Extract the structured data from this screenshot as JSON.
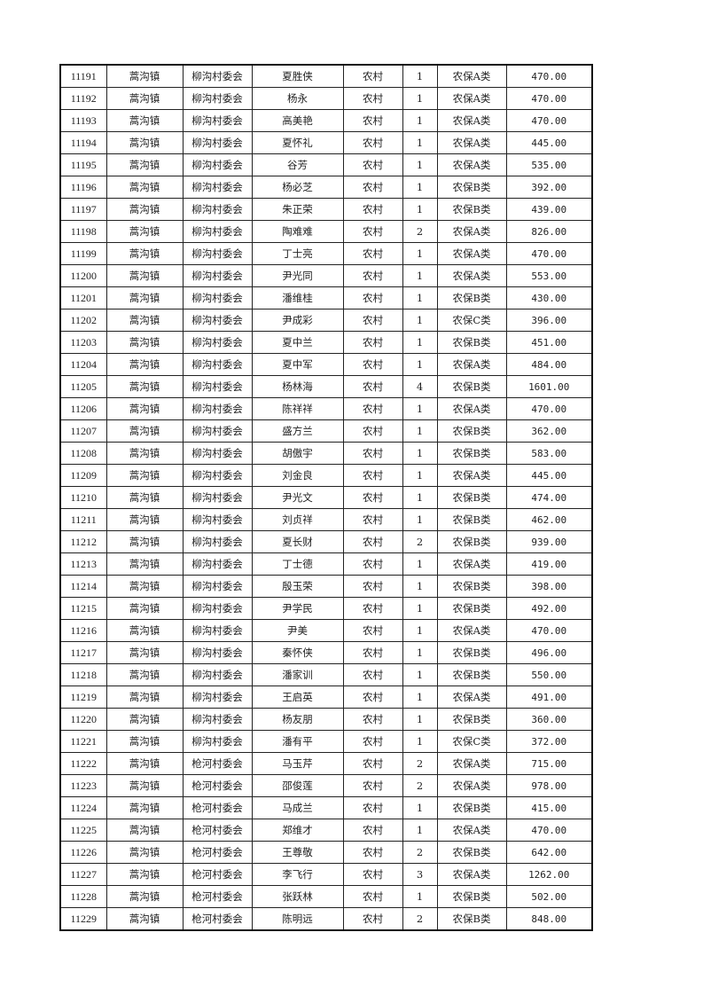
{
  "table": {
    "rows": [
      [
        "11191",
        "蒿沟镇",
        "柳沟村委会",
        "夏胜侠",
        "农村",
        "1",
        "农保A类",
        "470.00"
      ],
      [
        "11192",
        "蒿沟镇",
        "柳沟村委会",
        "杨永",
        "农村",
        "1",
        "农保A类",
        "470.00"
      ],
      [
        "11193",
        "蒿沟镇",
        "柳沟村委会",
        "高美艳",
        "农村",
        "1",
        "农保A类",
        "470.00"
      ],
      [
        "11194",
        "蒿沟镇",
        "柳沟村委会",
        "夏怀礼",
        "农村",
        "1",
        "农保A类",
        "445.00"
      ],
      [
        "11195",
        "蒿沟镇",
        "柳沟村委会",
        "谷芳",
        "农村",
        "1",
        "农保A类",
        "535.00"
      ],
      [
        "11196",
        "蒿沟镇",
        "柳沟村委会",
        "杨必芝",
        "农村",
        "1",
        "农保B类",
        "392.00"
      ],
      [
        "11197",
        "蒿沟镇",
        "柳沟村委会",
        "朱正荣",
        "农村",
        "1",
        "农保B类",
        "439.00"
      ],
      [
        "11198",
        "蒿沟镇",
        "柳沟村委会",
        "陶难难",
        "农村",
        "2",
        "农保A类",
        "826.00"
      ],
      [
        "11199",
        "蒿沟镇",
        "柳沟村委会",
        "丁士亮",
        "农村",
        "1",
        "农保A类",
        "470.00"
      ],
      [
        "11200",
        "蒿沟镇",
        "柳沟村委会",
        "尹光同",
        "农村",
        "1",
        "农保A类",
        "553.00"
      ],
      [
        "11201",
        "蒿沟镇",
        "柳沟村委会",
        "潘维桂",
        "农村",
        "1",
        "农保B类",
        "430.00"
      ],
      [
        "11202",
        "蒿沟镇",
        "柳沟村委会",
        "尹成彩",
        "农村",
        "1",
        "农保C类",
        "396.00"
      ],
      [
        "11203",
        "蒿沟镇",
        "柳沟村委会",
        "夏中兰",
        "农村",
        "1",
        "农保B类",
        "451.00"
      ],
      [
        "11204",
        "蒿沟镇",
        "柳沟村委会",
        "夏中军",
        "农村",
        "1",
        "农保A类",
        "484.00"
      ],
      [
        "11205",
        "蒿沟镇",
        "柳沟村委会",
        "杨林海",
        "农村",
        "4",
        "农保B类",
        "1601.00"
      ],
      [
        "11206",
        "蒿沟镇",
        "柳沟村委会",
        "陈祥祥",
        "农村",
        "1",
        "农保A类",
        "470.00"
      ],
      [
        "11207",
        "蒿沟镇",
        "柳沟村委会",
        "盛方兰",
        "农村",
        "1",
        "农保B类",
        "362.00"
      ],
      [
        "11208",
        "蒿沟镇",
        "柳沟村委会",
        "胡傲宇",
        "农村",
        "1",
        "农保B类",
        "583.00"
      ],
      [
        "11209",
        "蒿沟镇",
        "柳沟村委会",
        "刘金良",
        "农村",
        "1",
        "农保A类",
        "445.00"
      ],
      [
        "11210",
        "蒿沟镇",
        "柳沟村委会",
        "尹光文",
        "农村",
        "1",
        "农保B类",
        "474.00"
      ],
      [
        "11211",
        "蒿沟镇",
        "柳沟村委会",
        "刘贞祥",
        "农村",
        "1",
        "农保B类",
        "462.00"
      ],
      [
        "11212",
        "蒿沟镇",
        "柳沟村委会",
        "夏长财",
        "农村",
        "2",
        "农保B类",
        "939.00"
      ],
      [
        "11213",
        "蒿沟镇",
        "柳沟村委会",
        "丁士德",
        "农村",
        "1",
        "农保A类",
        "419.00"
      ],
      [
        "11214",
        "蒿沟镇",
        "柳沟村委会",
        "殷玉荣",
        "农村",
        "1",
        "农保B类",
        "398.00"
      ],
      [
        "11215",
        "蒿沟镇",
        "柳沟村委会",
        "尹学民",
        "农村",
        "1",
        "农保B类",
        "492.00"
      ],
      [
        "11216",
        "蒿沟镇",
        "柳沟村委会",
        "尹美",
        "农村",
        "1",
        "农保A类",
        "470.00"
      ],
      [
        "11217",
        "蒿沟镇",
        "柳沟村委会",
        "秦怀侠",
        "农村",
        "1",
        "农保B类",
        "496.00"
      ],
      [
        "11218",
        "蒿沟镇",
        "柳沟村委会",
        "潘家训",
        "农村",
        "1",
        "农保B类",
        "550.00"
      ],
      [
        "11219",
        "蒿沟镇",
        "柳沟村委会",
        "王启英",
        "农村",
        "1",
        "农保A类",
        "491.00"
      ],
      [
        "11220",
        "蒿沟镇",
        "柳沟村委会",
        "杨友朋",
        "农村",
        "1",
        "农保B类",
        "360.00"
      ],
      [
        "11221",
        "蒿沟镇",
        "柳沟村委会",
        "潘有平",
        "农村",
        "1",
        "农保C类",
        "372.00"
      ],
      [
        "11222",
        "蒿沟镇",
        "枪河村委会",
        "马玉芹",
        "农村",
        "2",
        "农保A类",
        "715.00"
      ],
      [
        "11223",
        "蒿沟镇",
        "枪河村委会",
        "邵俊莲",
        "农村",
        "2",
        "农保A类",
        "978.00"
      ],
      [
        "11224",
        "蒿沟镇",
        "枪河村委会",
        "马成兰",
        "农村",
        "1",
        "农保B类",
        "415.00"
      ],
      [
        "11225",
        "蒿沟镇",
        "枪河村委会",
        "郑维才",
        "农村",
        "1",
        "农保A类",
        "470.00"
      ],
      [
        "11226",
        "蒿沟镇",
        "枪河村委会",
        "王尊敬",
        "农村",
        "2",
        "农保B类",
        "642.00"
      ],
      [
        "11227",
        "蒿沟镇",
        "枪河村委会",
        "李飞行",
        "农村",
        "3",
        "农保A类",
        "1262.00"
      ],
      [
        "11228",
        "蒿沟镇",
        "枪河村委会",
        "张跃林",
        "农村",
        "1",
        "农保B类",
        "502.00"
      ],
      [
        "11229",
        "蒿沟镇",
        "枪河村委会",
        "陈明远",
        "农村",
        "2",
        "农保B类",
        "848.00"
      ]
    ]
  }
}
